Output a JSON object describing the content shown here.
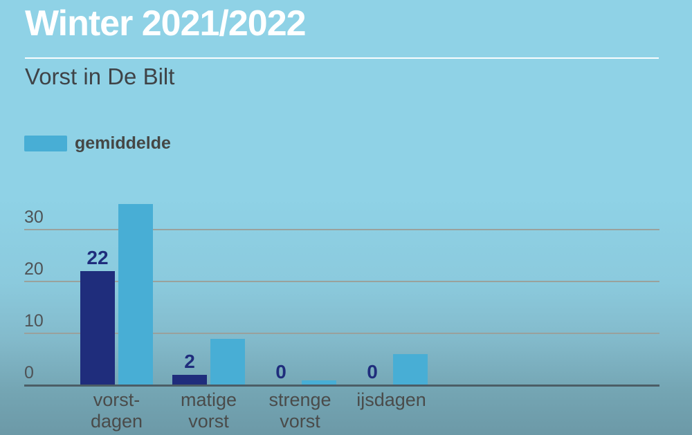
{
  "page": {
    "background_top": "#8FD2E6",
    "background_bottom": "#6C99A7"
  },
  "header": {
    "title": "Winter 2021/2022",
    "subtitle": "Vorst in De Bilt"
  },
  "legend": {
    "label": "gemiddelde",
    "swatch_color": "#48AED5"
  },
  "chart_data": {
    "type": "bar",
    "title": "Vorst in De Bilt",
    "categories": [
      "vorst-\ndagen",
      "matige\nvorst",
      "strenge\nvorst",
      "ijsdagen"
    ],
    "series": [
      {
        "name": "Winter 2021/2022",
        "values": [
          22,
          2,
          0,
          0
        ],
        "color": "#1F2D7C",
        "value_labels": true
      },
      {
        "name": "gemiddelde",
        "values": [
          35,
          9,
          1,
          6
        ],
        "color": "#48AED5",
        "value_labels": false
      }
    ],
    "yticks": [
      0,
      10,
      20,
      30
    ],
    "ylim": [
      0,
      35
    ],
    "grid": "horizontal",
    "legend_position": "top-left",
    "value_label_color": "#1F2D7C",
    "axis_label_color": "#4F5356",
    "category_label_color": "#4A4B4A",
    "gridline_color": "#9AA19C",
    "axis_line_color": "#4B5D66"
  }
}
